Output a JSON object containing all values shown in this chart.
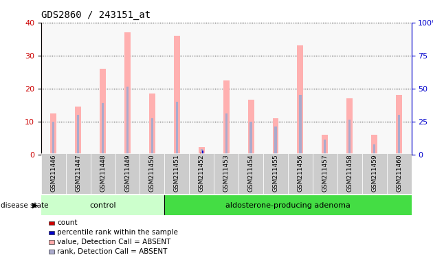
{
  "title": "GDS2860 / 243151_at",
  "samples": [
    "GSM211446",
    "GSM211447",
    "GSM211448",
    "GSM211449",
    "GSM211450",
    "GSM211451",
    "GSM211452",
    "GSM211453",
    "GSM211454",
    "GSM211455",
    "GSM211456",
    "GSM211457",
    "GSM211458",
    "GSM211459",
    "GSM211460"
  ],
  "pink_bars": [
    12.5,
    14.5,
    26.0,
    37.0,
    18.5,
    36.0,
    2.2,
    22.5,
    16.5,
    11.0,
    33.0,
    6.0,
    17.0,
    6.0,
    18.0
  ],
  "blue_bars": [
    10.0,
    12.0,
    15.5,
    20.5,
    11.0,
    16.0,
    1.5,
    12.5,
    10.0,
    8.5,
    18.0,
    4.5,
    10.5,
    3.0,
    12.0
  ],
  "red_bars": [
    0.0,
    0.0,
    0.0,
    0.0,
    0.0,
    0.0,
    0.5,
    0.0,
    0.0,
    0.0,
    0.0,
    0.0,
    0.0,
    0.0,
    0.0
  ],
  "darkblue_bars": [
    0.0,
    0.0,
    0.0,
    0.0,
    0.0,
    0.0,
    1.2,
    0.0,
    0.0,
    0.0,
    0.0,
    0.0,
    0.0,
    0.0,
    0.0
  ],
  "ylim": [
    0,
    40
  ],
  "yticks_left": [
    0,
    10,
    20,
    30,
    40
  ],
  "yticks_right": [
    0,
    25,
    50,
    75,
    100
  ],
  "control_count": 5,
  "adenoma_count": 10,
  "n_samples": 15,
  "control_label": "control",
  "adenoma_label": "aldosterone-producing adenoma",
  "disease_state_label": "disease state",
  "legend_items": [
    {
      "color": "#cc0000",
      "label": "count"
    },
    {
      "color": "#0000cc",
      "label": "percentile rank within the sample"
    },
    {
      "color": "#ffaaaa",
      "label": "value, Detection Call = ABSENT"
    },
    {
      "color": "#aaaacc",
      "label": "rank, Detection Call = ABSENT"
    }
  ],
  "pink_color": "#ffb0b0",
  "blue_color": "#aaaacc",
  "red_color": "#cc0000",
  "dark_blue_color": "#0000cc",
  "control_bg": "#ccffcc",
  "adenoma_bg": "#44dd44",
  "tick_bg": "#cccccc",
  "left_axis_color": "#cc0000",
  "right_axis_color": "#0000cc",
  "bg_color": "#f8f8f8"
}
